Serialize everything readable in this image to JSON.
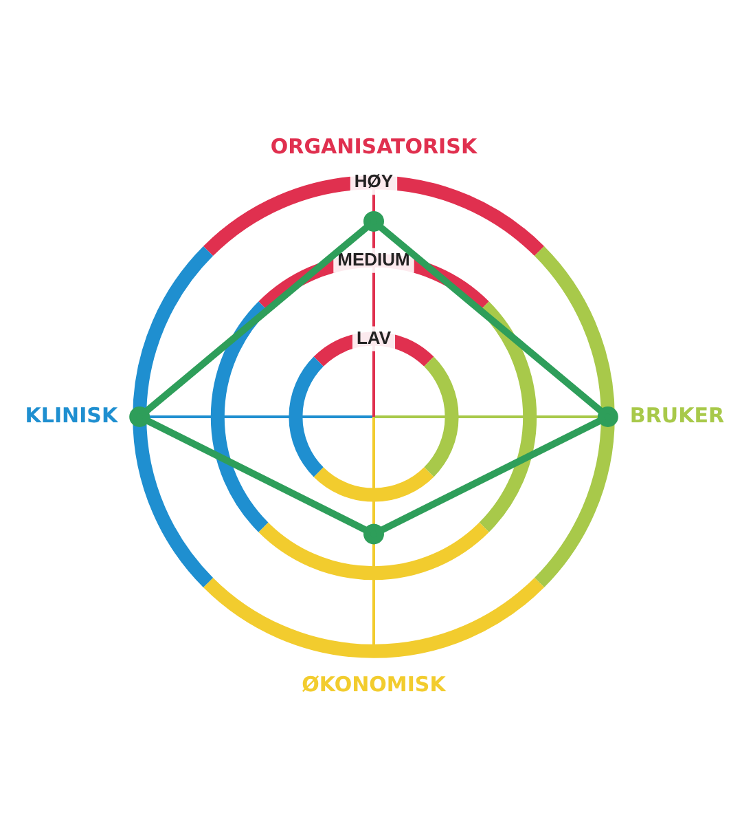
{
  "chart_data": {
    "type": "radar",
    "categories": [
      "ORGANISATORISK",
      "BRUKER",
      "ØKONOMISK",
      "KLINISK"
    ],
    "colors": [
      "#e0304f",
      "#a8c94a",
      "#f2cc2e",
      "#1f8fd0"
    ],
    "series": [
      {
        "color": "#2e9e5a",
        "values": [
          2.5,
          3,
          1.5,
          3
        ]
      }
    ],
    "ylim": [
      0,
      3
    ],
    "yticks": [
      {
        "value": 1,
        "label": "LAV"
      },
      {
        "value": 2,
        "label": "MEDIUM"
      },
      {
        "value": 3,
        "label": "HØY"
      }
    ],
    "grid": true,
    "legend": false,
    "marker": "circle"
  }
}
